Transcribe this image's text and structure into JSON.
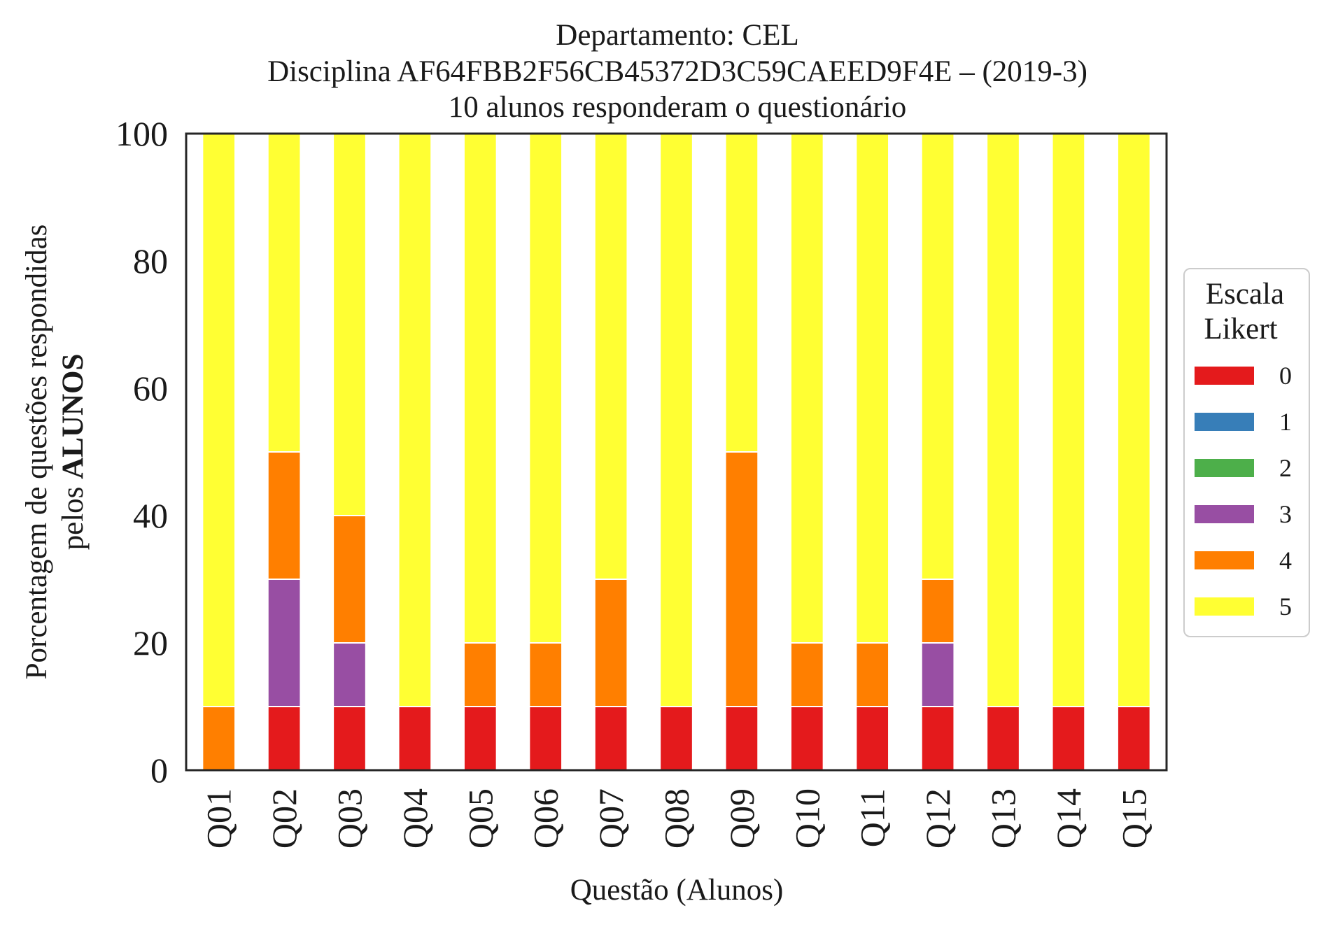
{
  "chart_data": {
    "type": "bar",
    "stacked": true,
    "title": [
      "Departamento: CEL",
      "Disciplina AF64FBB2F56CB45372D3C59CAEED9F4E – (2019-3)",
      "10 alunos responderam o questionário"
    ],
    "xlabel": "Questão (Alunos)",
    "ylabel_line1": "Porcentagem de questões respondidas",
    "ylabel_line2_prefix": "pelos ",
    "ylabel_line2_bold": "ALUNOS",
    "ylim": [
      0,
      100
    ],
    "yticks": [
      0,
      20,
      40,
      60,
      80,
      100
    ],
    "grid": false,
    "legend_position": "right",
    "legend_title": [
      "Escala",
      "Likert"
    ],
    "categories": [
      "Q01",
      "Q02",
      "Q03",
      "Q04",
      "Q05",
      "Q06",
      "Q07",
      "Q08",
      "Q09",
      "Q10",
      "Q11",
      "Q12",
      "Q13",
      "Q14",
      "Q15"
    ],
    "series": [
      {
        "name": "0",
        "color": "#e41a1c",
        "values": [
          0,
          10,
          10,
          10,
          10,
          10,
          10,
          10,
          10,
          10,
          10,
          10,
          10,
          10,
          10
        ]
      },
      {
        "name": "1",
        "color": "#377eb8",
        "values": [
          0,
          0,
          0,
          0,
          0,
          0,
          0,
          0,
          0,
          0,
          0,
          0,
          0,
          0,
          0
        ]
      },
      {
        "name": "2",
        "color": "#4daf4a",
        "values": [
          0,
          0,
          0,
          0,
          0,
          0,
          0,
          0,
          0,
          0,
          0,
          0,
          0,
          0,
          0
        ]
      },
      {
        "name": "3",
        "color": "#984ea3",
        "values": [
          0,
          20,
          10,
          0,
          0,
          0,
          0,
          0,
          0,
          0,
          0,
          10,
          0,
          0,
          0
        ]
      },
      {
        "name": "4",
        "color": "#ff7f00",
        "values": [
          10,
          20,
          20,
          0,
          10,
          10,
          20,
          0,
          40,
          10,
          10,
          10,
          0,
          0,
          0
        ]
      },
      {
        "name": "5",
        "color": "#ffff33",
        "values": [
          90,
          50,
          60,
          90,
          80,
          80,
          70,
          90,
          50,
          80,
          80,
          70,
          90,
          90,
          90
        ]
      }
    ]
  }
}
